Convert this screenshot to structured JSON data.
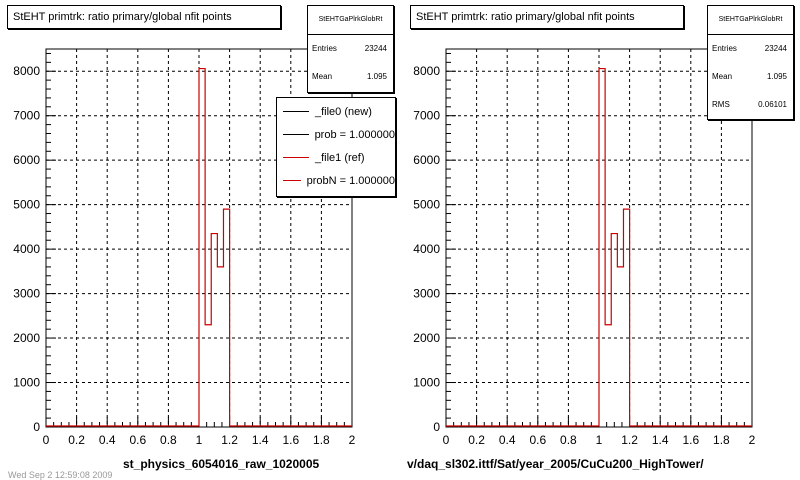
{
  "chart_data": [
    {
      "type": "bar",
      "title": "StEHT primtrk: ratio primary/global nfit points",
      "xlim": [
        0,
        2
      ],
      "ylim": [
        0,
        8500
      ],
      "x_ticks": [
        "0",
        "0.2",
        "0.4",
        "0.6",
        "0.8",
        "1",
        "1.2",
        "1.4",
        "1.6",
        "1.8",
        "2"
      ],
      "y_ticks": [
        "0",
        "1000",
        "2000",
        "3000",
        "4000",
        "5000",
        "6000",
        "7000",
        "8000"
      ],
      "grid": true,
      "series": [
        {
          "name": "_file1 (ref)",
          "color": "#cc0000",
          "bin_edges": [
            1.0,
            1.04,
            1.08,
            1.12,
            1.16,
            1.2
          ],
          "values": [
            8060,
            2300,
            4350,
            3600,
            4900
          ]
        }
      ],
      "stats": {
        "title": "StEHTGaPlrkGlobRt",
        "entries": "23244",
        "mean": "1.095"
      },
      "legend_position": "top-right",
      "xlabel_footer": "st_physics_6054016_raw_1020005"
    },
    {
      "type": "bar",
      "title": "StEHT primtrk: ratio primary/global nfit points",
      "xlim": [
        0,
        2
      ],
      "ylim": [
        0,
        8500
      ],
      "x_ticks": [
        "0",
        "0.2",
        "0.4",
        "0.6",
        "0.8",
        "1",
        "1.2",
        "1.4",
        "1.6",
        "1.8",
        "2"
      ],
      "y_ticks": [
        "0",
        "1000",
        "2000",
        "3000",
        "4000",
        "5000",
        "6000",
        "7000",
        "8000"
      ],
      "grid": true,
      "series": [
        {
          "color": "#cc0000",
          "bin_edges": [
            1.0,
            1.04,
            1.08,
            1.12,
            1.16,
            1.2
          ],
          "values": [
            8060,
            2300,
            4350,
            3600,
            4900
          ]
        }
      ],
      "stats": {
        "title": "StEHTGaPlrkGlobRt",
        "entries": "23244",
        "mean": "1.095",
        "rms": "0.06101"
      },
      "xlabel_footer": "v/daq_sl302.ittf/Sat/year_2005/CuCu200_HighTower/"
    }
  ],
  "labels": {
    "entries": "Entries",
    "mean": "Mean",
    "rms": "RMS"
  },
  "legend": [
    {
      "label": "_file0 (new)",
      "color": "#000000"
    },
    {
      "label": "prob = 1.000000",
      "color": "#000000"
    },
    {
      "label": "_file1 (ref)",
      "color": "#cc0000"
    },
    {
      "label": "probN = 1.000000",
      "color": "#cc0000"
    }
  ],
  "ghost_text": "Wed Sep  2 12:59:08 2009"
}
